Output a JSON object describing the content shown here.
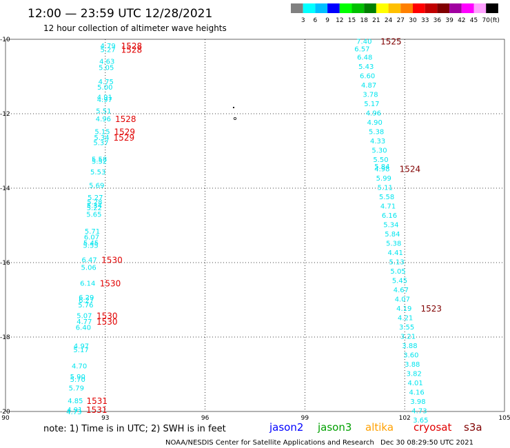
{
  "title": "12:00 — 23:59 UTC 12/28/2021",
  "subtitle": "12 hour collection of altimeter wave heights",
  "legend": {
    "colors": [
      "#808080",
      "#00ffff",
      "#00bfff",
      "#0000ff",
      "#00ff00",
      "#00c000",
      "#008000",
      "#ffff00",
      "#ffc000",
      "#ff8000",
      "#ff0000",
      "#c00000",
      "#800000",
      "#a000a0",
      "#ff00ff",
      "#ffa0ff",
      "#000000"
    ],
    "labels": [
      "3",
      "6",
      "9",
      "12",
      "15",
      "18",
      "21",
      "24",
      "27",
      "30",
      "33",
      "36",
      "39",
      "42",
      "45",
      "70"
    ],
    "unit": "(ft)"
  },
  "note": "note:  1) Time is in UTC;  2) SWH is in feet",
  "satellites": [
    {
      "name": "jason2",
      "color": "#0000ff"
    },
    {
      "name": "jason3",
      "color": "#00a000"
    },
    {
      "name": "altika",
      "color": "#ffa000"
    },
    {
      "name": "cryosat",
      "color": "#e00000"
    },
    {
      "name": "s3a",
      "color": "#800000"
    }
  ],
  "footer_left": "NOAA/NESDIS Center for Satellite Applications and Research",
  "footer_right": "Dec 30 08:29:50 UTC 2021",
  "chart_data": {
    "type": "scatter",
    "xlim": [
      90,
      105
    ],
    "ylim": [
      -20,
      -10
    ],
    "xticks": [
      90,
      93,
      96,
      99,
      102,
      105
    ],
    "yticks": [
      -10,
      -12,
      -14,
      -16,
      -18,
      -20
    ],
    "grid": true,
    "x_tick_labels": [
      "90",
      "93",
      "96",
      "99",
      "102",
      "105"
    ],
    "y_tick_labels": [
      "-10",
      "-12",
      "-14",
      "-16",
      "-18",
      "-20"
    ],
    "series": [
      {
        "name": "cryosat",
        "color": "#00e5ee",
        "points": [
          {
            "x": 93.08,
            "y": -10.17,
            "v": "4.79"
          },
          {
            "x": 93.08,
            "y": -10.27,
            "v": "5.27"
          },
          {
            "x": 93.05,
            "y": -10.58,
            "v": "4.63"
          },
          {
            "x": 93.03,
            "y": -10.75,
            "v": "5.05"
          },
          {
            "x": 93.02,
            "y": -11.13,
            "v": "4.75"
          },
          {
            "x": 92.99,
            "y": -11.28,
            "v": "5.00"
          },
          {
            "x": 92.98,
            "y": -11.55,
            "v": "4.91"
          },
          {
            "x": 92.98,
            "y": -11.61,
            "v": "4.97"
          },
          {
            "x": 92.95,
            "y": -11.92,
            "v": "5.51"
          },
          {
            "x": 92.94,
            "y": -12.13,
            "v": "4.96"
          },
          {
            "x": 92.91,
            "y": -12.47,
            "v": "5.15"
          },
          {
            "x": 92.89,
            "y": -12.63,
            "v": "5.34"
          },
          {
            "x": 92.87,
            "y": -12.77,
            "v": "5.37"
          },
          {
            "x": 92.82,
            "y": -13.21,
            "v": "5.58"
          },
          {
            "x": 92.82,
            "y": -13.27,
            "v": "5.52"
          },
          {
            "x": 92.78,
            "y": -13.56,
            "v": "5.53"
          },
          {
            "x": 92.74,
            "y": -13.92,
            "v": "5.69"
          },
          {
            "x": 92.7,
            "y": -14.24,
            "v": "5.27"
          },
          {
            "x": 92.68,
            "y": -14.36,
            "v": "5.28"
          },
          {
            "x": 92.67,
            "y": -14.45,
            "v": "5.34"
          },
          {
            "x": 92.67,
            "y": -14.52,
            "v": "5.22"
          },
          {
            "x": 92.66,
            "y": -14.69,
            "v": "5.65"
          },
          {
            "x": 92.61,
            "y": -15.15,
            "v": "5.71"
          },
          {
            "x": 92.59,
            "y": -15.31,
            "v": "6.07"
          },
          {
            "x": 92.57,
            "y": -15.46,
            "v": "5.45"
          },
          {
            "x": 92.56,
            "y": -15.53,
            "v": "5.55"
          },
          {
            "x": 92.52,
            "y": -15.92,
            "v": "6.47"
          },
          {
            "x": 92.5,
            "y": -16.12,
            "v": "5.06"
          },
          {
            "x": 92.47,
            "y": -16.55,
            "v": "6.14"
          },
          {
            "x": 92.43,
            "y": -16.93,
            "v": "6.29"
          },
          {
            "x": 92.43,
            "y": -17.0,
            "v": "6.27"
          },
          {
            "x": 92.41,
            "y": -17.13,
            "v": "5.76"
          },
          {
            "x": 92.37,
            "y": -17.42,
            "v": "5.07"
          },
          {
            "x": 92.37,
            "y": -17.57,
            "v": "4.77"
          },
          {
            "x": 92.34,
            "y": -17.73,
            "v": "6.40"
          },
          {
            "x": 92.28,
            "y": -18.23,
            "v": "4.97"
          },
          {
            "x": 92.27,
            "y": -18.33,
            "v": "5.17"
          },
          {
            "x": 92.22,
            "y": -18.77,
            "v": "4.70"
          },
          {
            "x": 92.17,
            "y": -19.06,
            "v": "5.90"
          },
          {
            "x": 92.17,
            "y": -19.13,
            "v": "5.70"
          },
          {
            "x": 92.13,
            "y": -19.36,
            "v": "5.79"
          },
          {
            "x": 92.1,
            "y": -19.7,
            "v": "4.85"
          },
          {
            "x": 92.08,
            "y": -19.94,
            "v": "4.91"
          },
          {
            "x": 92.06,
            "y": -20.0,
            "v": "4.73"
          }
        ],
        "times": [
          {
            "x": 93.79,
            "y": -10.17,
            "v": "1528"
          },
          {
            "x": 93.79,
            "y": -10.27,
            "v": "1528"
          },
          {
            "x": 93.61,
            "y": -12.13,
            "v": "1528"
          },
          {
            "x": 93.58,
            "y": -12.47,
            "v": "1529"
          },
          {
            "x": 93.56,
            "y": -12.63,
            "v": "1529"
          },
          {
            "x": 93.2,
            "y": -15.92,
            "v": "1530"
          },
          {
            "x": 93.15,
            "y": -16.55,
            "v": "1530"
          },
          {
            "x": 93.05,
            "y": -17.42,
            "v": "1530"
          },
          {
            "x": 93.05,
            "y": -17.57,
            "v": "1530"
          },
          {
            "x": 92.75,
            "y": -19.7,
            "v": "1531"
          },
          {
            "x": 92.74,
            "y": -19.94,
            "v": "1531"
          }
        ]
      },
      {
        "name": "s3a",
        "color": "#00e5ee",
        "points": [
          {
            "x": 100.78,
            "y": -10.05,
            "v": "7.40"
          },
          {
            "x": 100.72,
            "y": -10.25,
            "v": "6.57"
          },
          {
            "x": 100.8,
            "y": -10.47,
            "v": "6.48"
          },
          {
            "x": 100.84,
            "y": -10.72,
            "v": "5.43"
          },
          {
            "x": 100.88,
            "y": -10.97,
            "v": "6.60"
          },
          {
            "x": 100.92,
            "y": -11.22,
            "v": "4.87"
          },
          {
            "x": 100.97,
            "y": -11.47,
            "v": "3.78"
          },
          {
            "x": 101.01,
            "y": -11.72,
            "v": "5.17"
          },
          {
            "x": 101.06,
            "y": -11.97,
            "v": "4.96"
          },
          {
            "x": 101.1,
            "y": -12.22,
            "v": "4.90"
          },
          {
            "x": 101.15,
            "y": -12.47,
            "v": "5.38"
          },
          {
            "x": 101.19,
            "y": -12.72,
            "v": "4.33"
          },
          {
            "x": 101.24,
            "y": -12.97,
            "v": "5.30"
          },
          {
            "x": 101.28,
            "y": -13.22,
            "v": "5.50"
          },
          {
            "x": 101.32,
            "y": -13.41,
            "v": "5.84"
          },
          {
            "x": 101.32,
            "y": -13.47,
            "v": "4.98"
          },
          {
            "x": 101.37,
            "y": -13.72,
            "v": "5.99"
          },
          {
            "x": 101.41,
            "y": -13.97,
            "v": "5.11"
          },
          {
            "x": 101.46,
            "y": -14.22,
            "v": "5.58"
          },
          {
            "x": 101.5,
            "y": -14.47,
            "v": "4.71"
          },
          {
            "x": 101.54,
            "y": -14.72,
            "v": "6.16"
          },
          {
            "x": 101.59,
            "y": -14.97,
            "v": "5.34"
          },
          {
            "x": 101.63,
            "y": -15.22,
            "v": "5.84"
          },
          {
            "x": 101.67,
            "y": -15.47,
            "v": "5.38"
          },
          {
            "x": 101.72,
            "y": -15.72,
            "v": "4.41"
          },
          {
            "x": 101.76,
            "y": -15.97,
            "v": "5.13"
          },
          {
            "x": 101.8,
            "y": -16.22,
            "v": "5.05"
          },
          {
            "x": 101.85,
            "y": -16.47,
            "v": "5.45"
          },
          {
            "x": 101.89,
            "y": -16.72,
            "v": "4.67"
          },
          {
            "x": 101.93,
            "y": -16.97,
            "v": "4.07"
          },
          {
            "x": 101.98,
            "y": -17.22,
            "v": "4.19"
          },
          {
            "x": 102.02,
            "y": -17.47,
            "v": "4.21"
          },
          {
            "x": 102.06,
            "y": -17.72,
            "v": "3.55"
          },
          {
            "x": 102.1,
            "y": -17.97,
            "v": "3.21"
          },
          {
            "x": 102.15,
            "y": -18.22,
            "v": "3.88"
          },
          {
            "x": 102.19,
            "y": -18.47,
            "v": "3.60"
          },
          {
            "x": 102.23,
            "y": -18.72,
            "v": "3.88"
          },
          {
            "x": 102.28,
            "y": -18.97,
            "v": "3.82"
          },
          {
            "x": 102.32,
            "y": -19.22,
            "v": "4.01"
          },
          {
            "x": 102.36,
            "y": -19.47,
            "v": "4.16"
          },
          {
            "x": 102.4,
            "y": -19.72,
            "v": "3.98"
          },
          {
            "x": 102.44,
            "y": -19.97,
            "v": "4.73"
          },
          {
            "x": 102.48,
            "y": -20.22,
            "v": "3.65"
          }
        ],
        "times": [
          {
            "x": 101.59,
            "y": -10.05,
            "v": "1525"
          },
          {
            "x": 102.16,
            "y": -13.47,
            "v": "1524"
          },
          {
            "x": 102.8,
            "y": -17.22,
            "v": "1523"
          }
        ]
      }
    ]
  }
}
